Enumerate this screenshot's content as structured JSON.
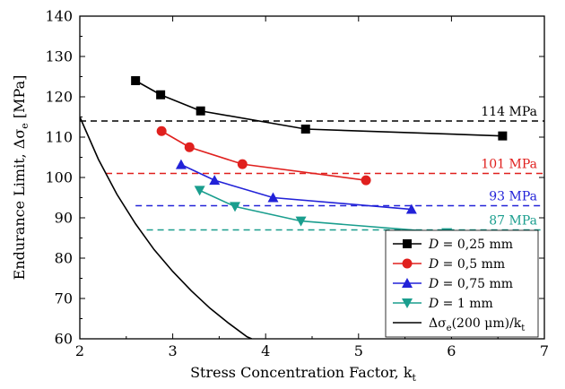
{
  "chart_data": {
    "type": "line",
    "xlabel": "Stress Concentration Factor, k",
    "xlabel_sub": "t",
    "ylabel_prefix": "Endurance Limit, Δσ",
    "ylabel_sub": "e",
    "ylabel_suffix": " [MPa]",
    "xlim": [
      2,
      7
    ],
    "ylim": [
      60,
      140
    ],
    "x_ticks": [
      2,
      3,
      4,
      5,
      6,
      7
    ],
    "y_ticks": [
      60,
      70,
      80,
      90,
      100,
      110,
      120,
      130,
      140
    ],
    "grid": false,
    "legend_position": "bottom-right",
    "series": [
      {
        "name": "D = 0,25 mm",
        "legend_pre": "D",
        "legend_post": " = 0,25 mm",
        "color": "#000000",
        "marker": "square",
        "x": [
          2.6,
          2.87,
          3.3,
          4.43,
          6.55
        ],
        "y": [
          124,
          120.5,
          116.5,
          112,
          110.3
        ]
      },
      {
        "name": "D = 0,5 mm",
        "legend_pre": "D",
        "legend_post": " = 0,5 mm",
        "color": "#e0201e",
        "marker": "circle",
        "x": [
          2.88,
          3.18,
          3.75,
          5.08
        ],
        "y": [
          111.5,
          107.5,
          103.3,
          99.3
        ]
      },
      {
        "name": "D = 0,75 mm",
        "legend_pre": "D",
        "legend_post": " = 0,75 mm",
        "color": "#2222d8",
        "marker": "triangle-up",
        "x": [
          3.09,
          3.45,
          4.08,
          5.57
        ],
        "y": [
          103.2,
          99.3,
          95,
          92.1
        ]
      },
      {
        "name": "D = 1 mm",
        "legend_pre": "D",
        "legend_post": " = 1 mm",
        "color": "#1a9e8e",
        "marker": "triangle-down",
        "x": [
          3.29,
          3.67,
          4.38,
          5.95
        ],
        "y": [
          96.8,
          92.8,
          89.2,
          86.3
        ]
      }
    ],
    "curve": {
      "name": "Δσe(200 μm)/kt",
      "legend_a": "Δσ",
      "legend_b": "e",
      "legend_c": "(200 μm)/k",
      "legend_d": "t",
      "color": "#000000",
      "x": [
        2.0,
        2.2,
        2.4,
        2.6,
        2.8,
        3.0,
        3.2,
        3.4,
        3.6,
        3.8,
        3.85
      ],
      "y": [
        115.0,
        104.5,
        95.8,
        88.5,
        82.1,
        76.7,
        71.9,
        67.6,
        63.9,
        60.5,
        60.0
      ]
    },
    "reference_lines": [
      {
        "value": 114,
        "label": "114 MPa",
        "color": "#000000",
        "x_start": 2.0
      },
      {
        "value": 101,
        "label": "101 MPa",
        "color": "#e0201e",
        "x_start": 2.28
      },
      {
        "value": 93,
        "label": "93 MPa",
        "color": "#2222d8",
        "x_start": 2.6
      },
      {
        "value": 87,
        "label": "87 MPa",
        "color": "#1a9e8e",
        "x_start": 2.72
      }
    ]
  }
}
